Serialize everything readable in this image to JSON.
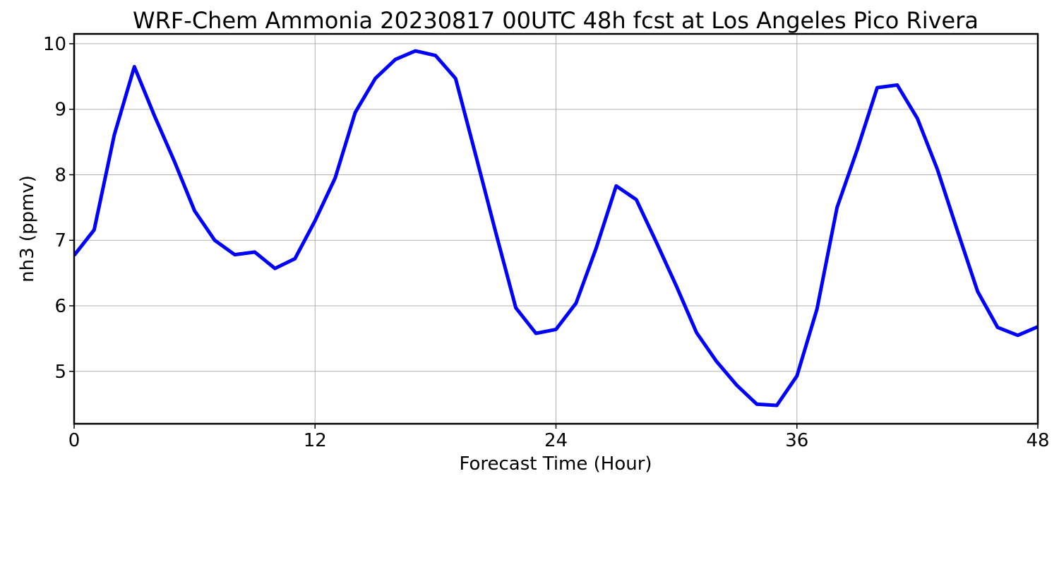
{
  "chart_data": {
    "type": "line",
    "title": "WRF-Chem Ammonia  20230817 00UTC 48h fcst at Los Angeles Pico Rivera",
    "xlabel": "Forecast Time (Hour)",
    "ylabel": "nh3  (ppmv)",
    "xlim": [
      0,
      48
    ],
    "ylim": [
      4.2,
      10.15
    ],
    "xticks": [
      0,
      12,
      24,
      36,
      48
    ],
    "xtick_labels": [
      "0",
      "12",
      "24",
      "36",
      "48"
    ],
    "yticks": [
      5,
      6,
      7,
      8,
      9,
      10
    ],
    "ytick_labels": [
      "5",
      "6",
      "7",
      "8",
      "9",
      "10"
    ],
    "grid": true,
    "series": [
      {
        "color": "#0000ff",
        "x": [
          0,
          1,
          2,
          3,
          4,
          5,
          6,
          7,
          8,
          9,
          10,
          11,
          12,
          13,
          14,
          15,
          16,
          17,
          18,
          19,
          20,
          21,
          22,
          23,
          24,
          25,
          26,
          27,
          28,
          29,
          30,
          31,
          32,
          33,
          34,
          35,
          36,
          37,
          38,
          39,
          40,
          41,
          42,
          43,
          44,
          45,
          46,
          47,
          48
        ],
        "values": [
          6.77,
          7.16,
          8.61,
          9.65,
          8.9,
          8.2,
          7.45,
          7.0,
          6.78,
          6.82,
          6.57,
          6.72,
          7.3,
          7.95,
          8.95,
          9.47,
          9.76,
          9.89,
          9.82,
          9.47,
          8.3,
          7.12,
          5.97,
          5.58,
          5.64,
          6.04,
          6.88,
          7.83,
          7.62,
          6.97,
          6.3,
          5.59,
          5.15,
          4.79,
          4.5,
          4.48,
          4.93,
          5.95,
          7.5,
          8.38,
          9.33,
          9.37,
          8.86,
          8.08,
          7.14,
          6.22,
          5.67,
          5.55,
          5.68
        ]
      }
    ]
  }
}
